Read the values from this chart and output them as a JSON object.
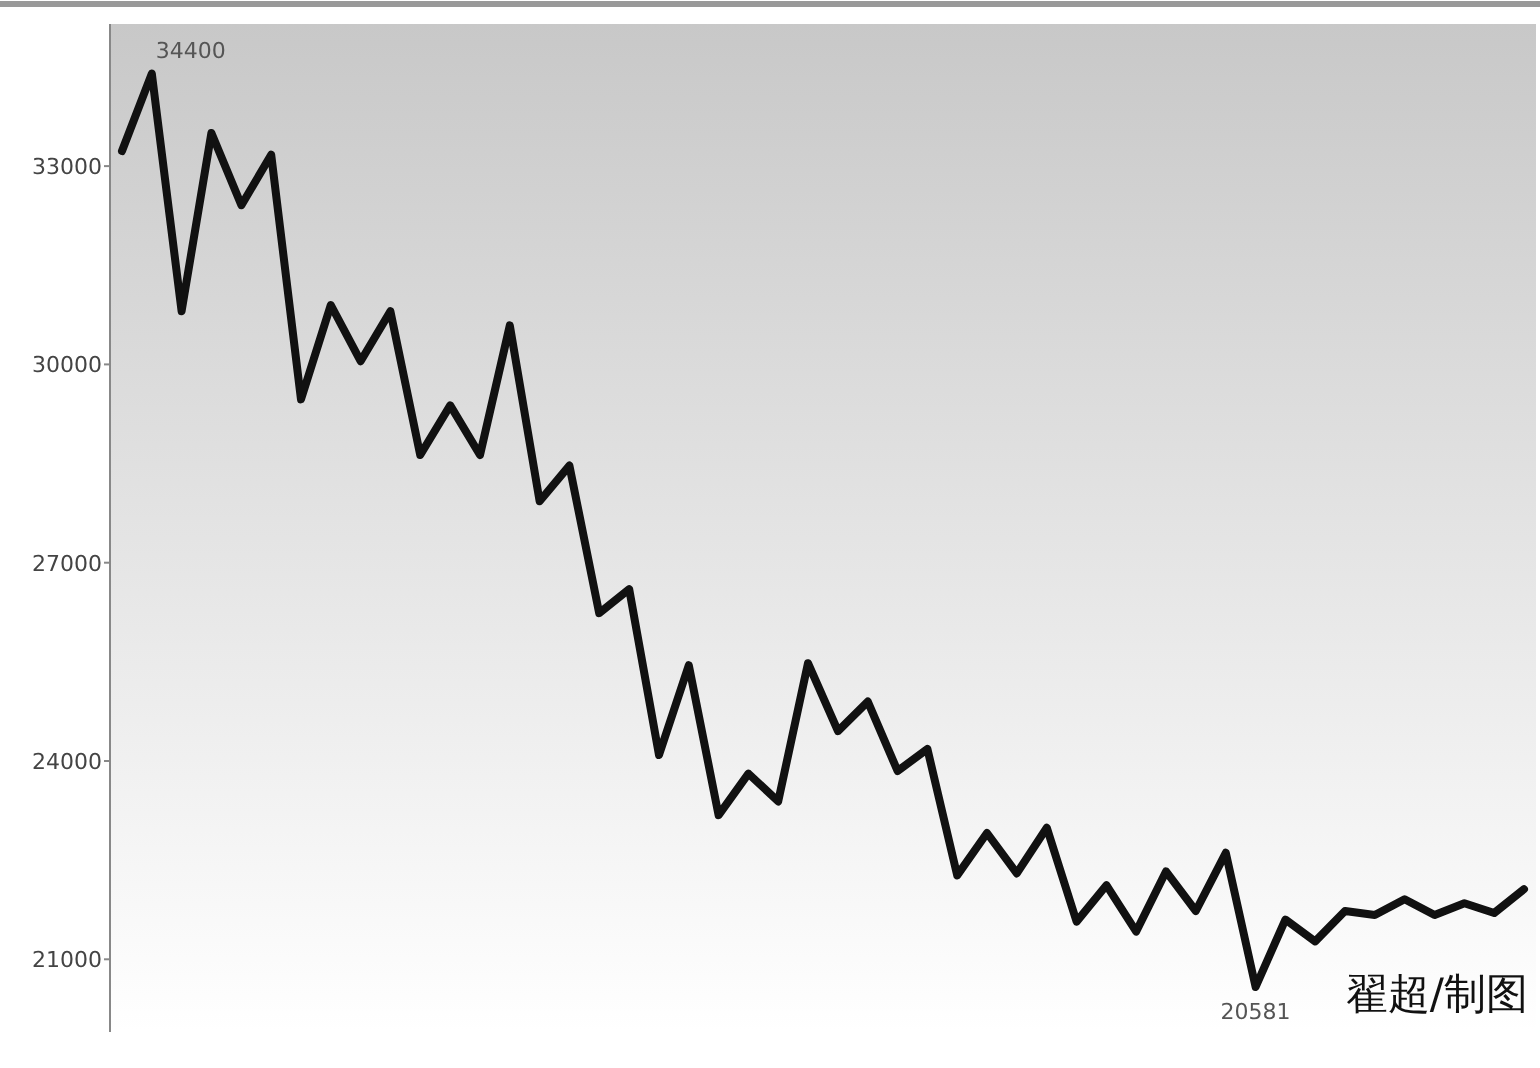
{
  "chart_data": {
    "type": "line",
    "categories": [
      null,
      null,
      null,
      null,
      null,
      null,
      null,
      null,
      null,
      null,
      null,
      null,
      null,
      null,
      null,
      null,
      null,
      null,
      null,
      null,
      null,
      null,
      null,
      null,
      null,
      null,
      null,
      null,
      null,
      null,
      null,
      null,
      null,
      null,
      null,
      null,
      null,
      null,
      null,
      null,
      null,
      null,
      null,
      null,
      null,
      null,
      null,
      null
    ],
    "values": [
      33230,
      34400,
      30805,
      33500,
      32410,
      33170,
      29470,
      30900,
      30050,
      30805,
      28630,
      29380,
      28630,
      30590,
      27930,
      28470,
      26235,
      26600,
      24090,
      25450,
      23180,
      23810,
      23390,
      25480,
      24450,
      24900,
      23850,
      24180,
      22270,
      22910,
      22300,
      22990,
      21570,
      22120,
      21420,
      22330,
      21730,
      22610,
      20581,
      21600,
      21270,
      21730,
      21670,
      21910,
      21670,
      21850,
      21700,
      22060
    ],
    "color": "#111111",
    "ylim": [
      19900,
      35150
    ],
    "yticks": [
      21000,
      24000,
      27000,
      30000,
      33000
    ],
    "value_labels": [
      null,
      "34400",
      null,
      null,
      null,
      null,
      null,
      null,
      null,
      null,
      null,
      null,
      null,
      null,
      null,
      null,
      null,
      null,
      null,
      null,
      null,
      null,
      null,
      null,
      null,
      null,
      null,
      null,
      null,
      null,
      null,
      null,
      null,
      null,
      null,
      null,
      null,
      null,
      "20581",
      null,
      null,
      null,
      null,
      null,
      null,
      null,
      null,
      null
    ],
    "annotations": [
      "翟超/制图"
    ]
  }
}
